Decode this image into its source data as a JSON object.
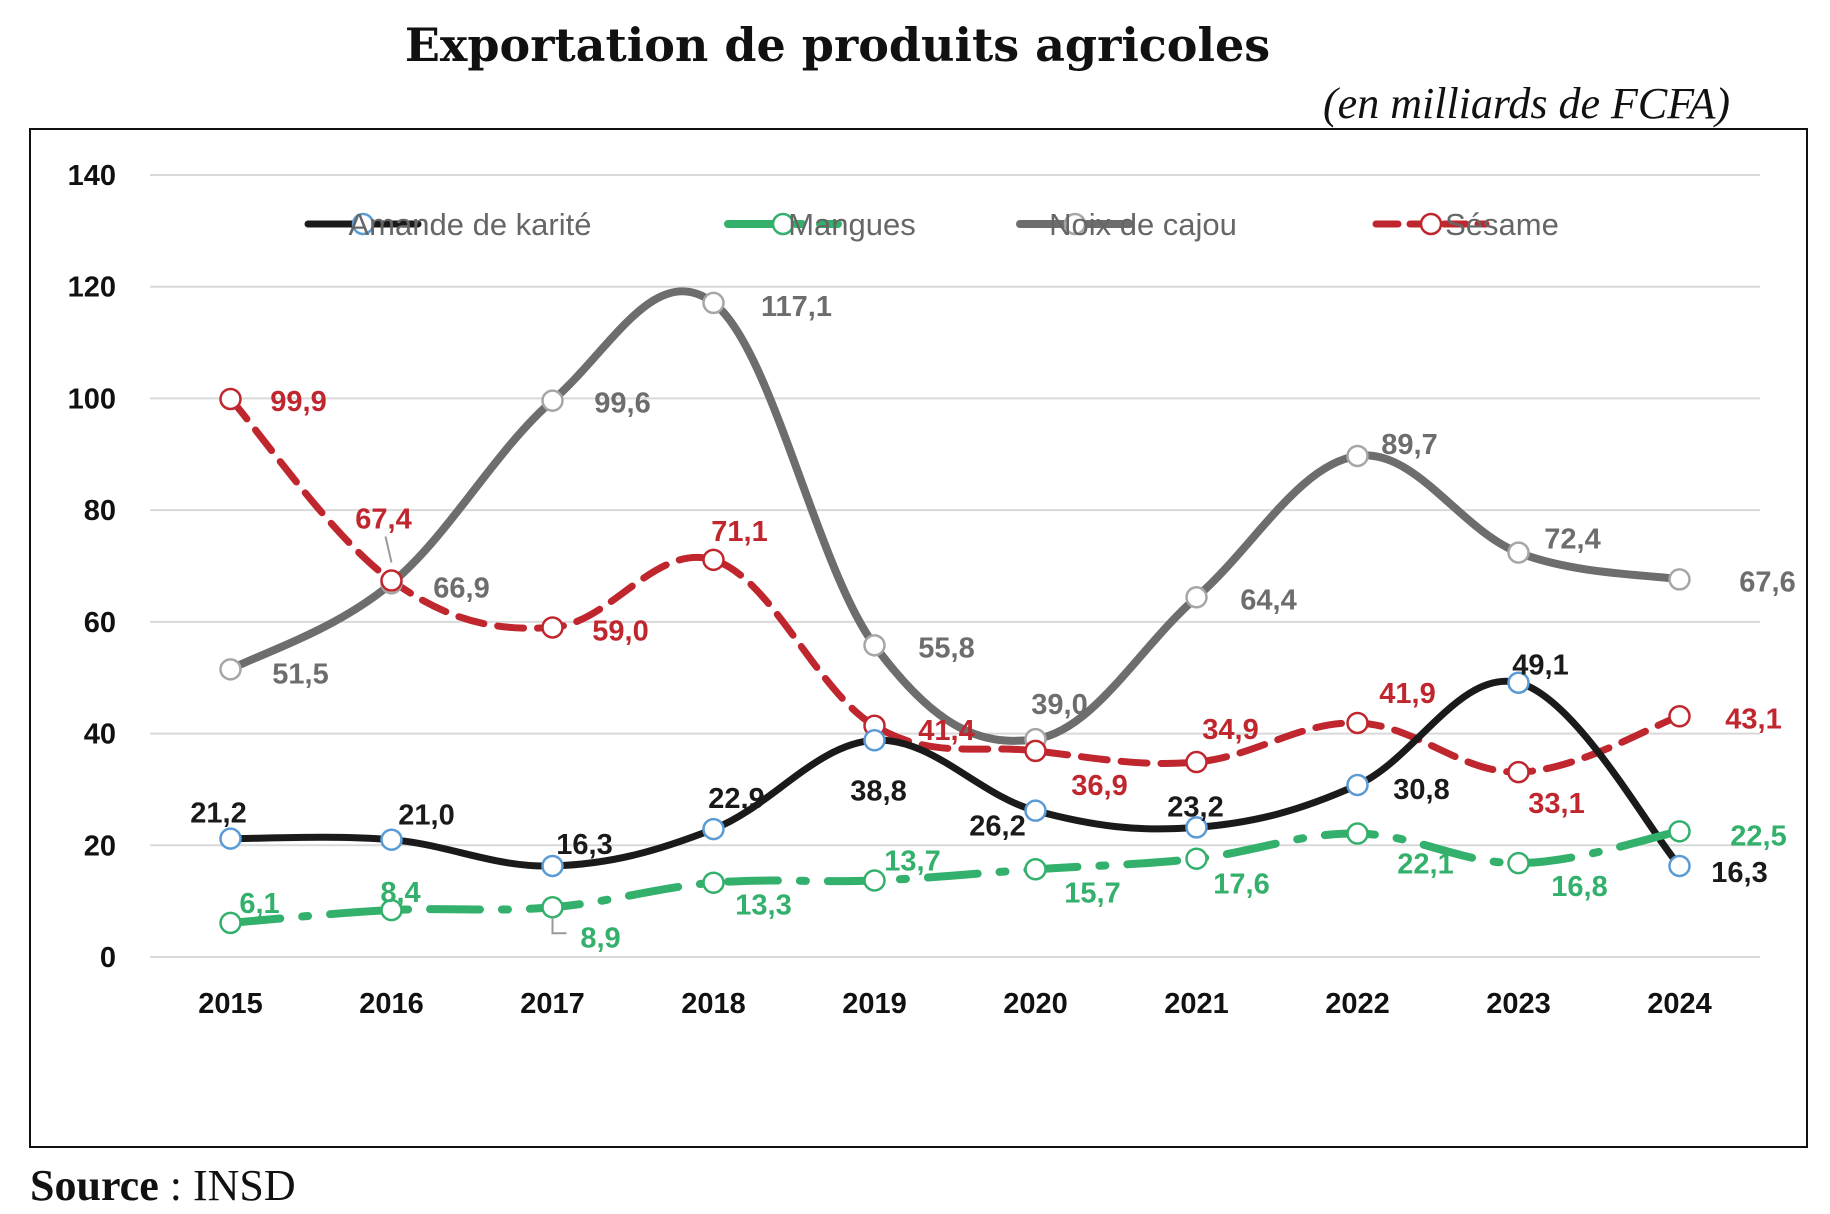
{
  "chart_data": {
    "type": "line",
    "title": "Exportation de produits agricoles",
    "subtitle": "(en milliards de FCFA)",
    "x": [
      "2015",
      "2016",
      "2017",
      "2018",
      "2019",
      "2020",
      "2021",
      "2022",
      "2023",
      "2024"
    ],
    "ylim": [
      0,
      140
    ],
    "yticks": [
      0,
      20,
      40,
      60,
      80,
      100,
      120,
      140
    ],
    "grid": true,
    "legend_position": "top",
    "series": [
      {
        "name": "Amande de karité",
        "values": [
          21.2,
          21.0,
          16.3,
          22.9,
          38.8,
          26.2,
          23.2,
          30.8,
          49.1,
          16.3
        ],
        "labels": [
          "21,2",
          "21,0",
          "16,3",
          "22,9",
          "38,8",
          "26,2",
          "23,2",
          "30,8",
          "49,1",
          "16,3"
        ],
        "color": "#1a1a1a",
        "marker_color": "#5b9bd5",
        "style": "solid"
      },
      {
        "name": "Mangues",
        "values": [
          6.1,
          8.4,
          8.9,
          13.3,
          13.7,
          15.7,
          17.6,
          22.1,
          16.8,
          22.5
        ],
        "labels": [
          "6,1",
          "8,4",
          "8,9",
          "13,3",
          "13,7",
          "15,7",
          "17,6",
          "22,1",
          "16,8",
          "22,5"
        ],
        "color": "#33b06b",
        "marker_color": "#33b06b",
        "style": "dash-dot"
      },
      {
        "name": "Noix de cajou",
        "values": [
          51.5,
          66.9,
          99.6,
          117.1,
          55.8,
          39.0,
          64.4,
          89.7,
          72.4,
          67.6
        ],
        "labels": [
          "51,5",
          "66,9",
          "99,6",
          "117,1",
          "55,8",
          "39,0",
          "64,4",
          "89,7",
          "72,4",
          "67,6"
        ],
        "color": "#6d6d6d",
        "marker_color": "#a6a6a6",
        "style": "solid"
      },
      {
        "name": "Sésame",
        "values": [
          99.9,
          67.4,
          59.0,
          71.1,
          41.4,
          36.9,
          34.9,
          41.9,
          33.1,
          43.1
        ],
        "labels": [
          "99,9",
          "67,4",
          "59,0",
          "71,1",
          "41,4",
          "36,9",
          "34,9",
          "41,9",
          "33,1",
          "43,1"
        ],
        "color": "#c0262e",
        "marker_color": "#c0262e",
        "style": "dashed"
      }
    ]
  },
  "source": {
    "label": "Source",
    "text": " : INSD"
  }
}
